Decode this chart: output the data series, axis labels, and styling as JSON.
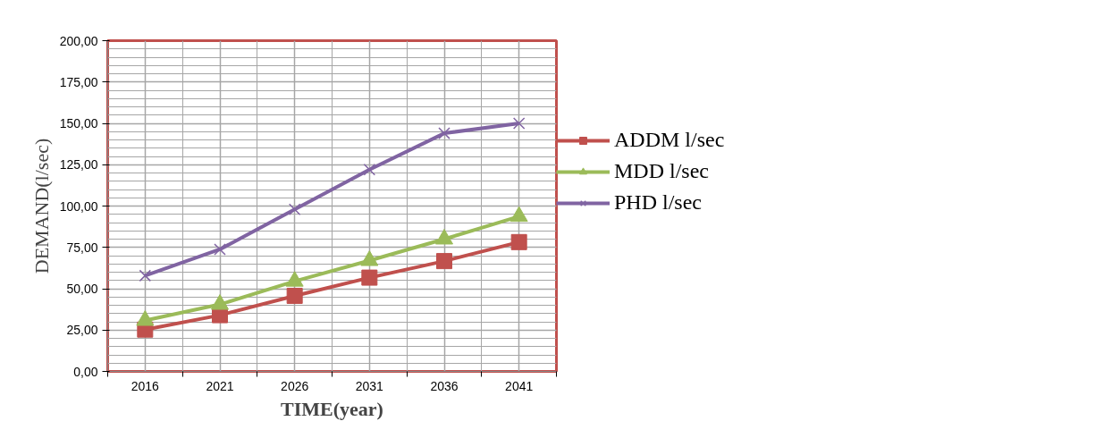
{
  "chart_data": {
    "type": "line",
    "xlabel": "TIME(year)",
    "ylabel": "DEMAND(l/sec)",
    "categories": [
      "2016",
      "2021",
      "2026",
      "2031",
      "2036",
      "2041"
    ],
    "series": [
      {
        "name": "ADDM l/sec",
        "color": "#c0504d",
        "marker": "square",
        "values": [
          25.3,
          34,
          45.7,
          56.7,
          66.7,
          78.2
        ]
      },
      {
        "name": "MDD l/sec",
        "color": "#9bbb59",
        "marker": "triangle",
        "values": [
          30.8,
          40.5,
          54.5,
          67,
          80,
          93.7
        ]
      },
      {
        "name": "PHD l/sec",
        "color": "#8064a2",
        "marker": "cross",
        "values": [
          57.9,
          73.8,
          98,
          122,
          144,
          150
        ]
      }
    ],
    "ylim": [
      0,
      200
    ],
    "yticks": [
      {
        "value": 0,
        "label": "0,00"
      },
      {
        "value": 25,
        "label": "25,00"
      },
      {
        "value": 50,
        "label": "50,00"
      },
      {
        "value": 75,
        "label": "75,00"
      },
      {
        "value": 100,
        "label": "100,00"
      },
      {
        "value": 125,
        "label": "125,00"
      },
      {
        "value": 150,
        "label": "150,00"
      },
      {
        "value": 175,
        "label": "175,00"
      },
      {
        "value": 200,
        "label": "200,00"
      }
    ],
    "grid": true,
    "legend": "right",
    "line_style": "solid"
  }
}
